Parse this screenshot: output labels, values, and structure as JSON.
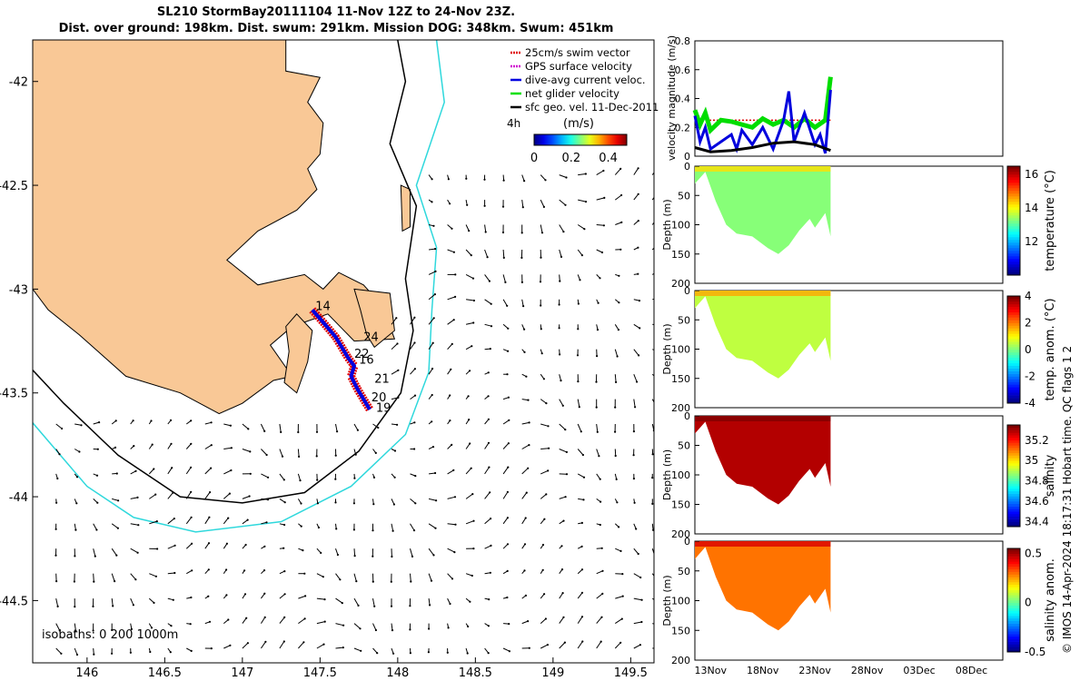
{
  "title": {
    "line1": "SL210 StormBay20111104 11-Nov 12Z to 24-Nov 23Z.",
    "line2": "Dist. over ground: 198km. Dist. swum: 291km. Mission DOG: 348km. Swum: 451km"
  },
  "credit": "© IMOS 14-Apr-2024 18:17:31 Hobart time. QC flags 1  2",
  "chart_data": [
    {
      "type": "map",
      "name": "glider track map",
      "x_ticks": [
        "146",
        "146.5",
        "147",
        "147.5",
        "148",
        "148.5",
        "149",
        "149.5"
      ],
      "y_ticks": [
        "-42",
        "-42.5",
        "-43",
        "-43.5",
        "-44",
        "-44.5"
      ],
      "xlim": [
        145.65,
        149.65
      ],
      "ylim": [
        -44.8,
        -41.8
      ],
      "legend": [
        "25cm/s swim vector",
        "GPS surface velocity",
        "dive-avg current veloc.",
        "net glider velocity",
        "sfc geo. vel. 11-Dec-2011"
      ],
      "legend_colors": [
        "#e00000",
        "#d000d0",
        "#0000e0",
        "#00e000",
        "#000000"
      ],
      "track_labels": [
        "14",
        "24",
        "22",
        "16",
        "21",
        "20",
        "19"
      ],
      "scale_label": "4h",
      "colorbar": {
        "label": "(m/s)",
        "ticks": [
          "0",
          "0.2",
          "0.4"
        ],
        "range": [
          0,
          0.5
        ]
      },
      "isobath_label": "isobaths: 0   200  1000m"
    },
    {
      "type": "line",
      "name": "velocity magnitude",
      "ylabel": "velocity magnitude (m/s)",
      "ylim": [
        0,
        0.8
      ],
      "y_ticks": [
        "0",
        "0.2",
        "0.4",
        "0.6",
        "0.8"
      ],
      "series": [
        {
          "name": "net glider velocity",
          "color": "#00dd00",
          "x": [
            11.5,
            12,
            12.5,
            13,
            14,
            15,
            16,
            17,
            18,
            19,
            20,
            21,
            22,
            23,
            24,
            24.5
          ],
          "values": [
            0.32,
            0.22,
            0.3,
            0.18,
            0.25,
            0.24,
            0.22,
            0.2,
            0.26,
            0.22,
            0.25,
            0.2,
            0.26,
            0.2,
            0.25,
            0.55
          ]
        },
        {
          "name": "dive-avg current veloc.",
          "color": "#0000dd",
          "x": [
            11.5,
            12,
            12.5,
            13,
            14,
            15,
            15.5,
            16,
            17,
            18,
            19,
            20,
            20.5,
            21,
            22,
            23,
            23.5,
            24,
            24.5
          ],
          "values": [
            0.28,
            0.1,
            0.2,
            0.05,
            0.1,
            0.15,
            0.05,
            0.18,
            0.08,
            0.2,
            0.05,
            0.25,
            0.45,
            0.1,
            0.3,
            0.08,
            0.15,
            0.02,
            0.46
          ]
        },
        {
          "name": "sfc geo. vel.",
          "color": "#000000",
          "x": [
            11.5,
            13,
            15,
            17,
            19,
            21,
            23,
            24.5
          ],
          "values": [
            0.06,
            0.03,
            0.04,
            0.06,
            0.09,
            0.1,
            0.08,
            0.04
          ]
        }
      ]
    },
    {
      "type": "section",
      "name": "temperature",
      "ylabel": "Depth (m)",
      "cbar_label": "temperature (°C)",
      "ylim": [
        200,
        0
      ],
      "clim": [
        10,
        16.5
      ],
      "cbar_ticks": [
        "16",
        "14",
        "12"
      ],
      "y_ticks": [
        "0",
        "50",
        "100",
        "150",
        "200"
      ],
      "bottom_depth_profile": [
        [
          11.5,
          30
        ],
        [
          12.5,
          10
        ],
        [
          13.5,
          60
        ],
        [
          14.5,
          100
        ],
        [
          15.5,
          115
        ],
        [
          17,
          120
        ],
        [
          18.5,
          140
        ],
        [
          19.5,
          150
        ],
        [
          20.5,
          135
        ],
        [
          21.5,
          110
        ],
        [
          22.5,
          90
        ],
        [
          23,
          105
        ],
        [
          24,
          80
        ],
        [
          24.5,
          120
        ]
      ],
      "dominant_value": 13.3
    },
    {
      "type": "section",
      "name": "temperature anomaly",
      "ylabel": "Depth (m)",
      "cbar_label": "temp. anom. (°C)",
      "ylim": [
        200,
        0
      ],
      "clim": [
        -4,
        4
      ],
      "cbar_ticks": [
        "4",
        "2",
        "0",
        "-2",
        "-4"
      ],
      "y_ticks": [
        "0",
        "50",
        "100",
        "150",
        "200"
      ],
      "dominant_value": 0.5
    },
    {
      "type": "section",
      "name": "salinity",
      "ylabel": "Depth (m)",
      "cbar_label": "salinity",
      "ylim": [
        200,
        0
      ],
      "clim": [
        34.35,
        35.35
      ],
      "cbar_ticks": [
        "35.2",
        "35",
        "34.8",
        "34.6",
        "34.4"
      ],
      "y_ticks": [
        "0",
        "50",
        "100",
        "150",
        "200"
      ],
      "dominant_value": 35.3
    },
    {
      "type": "section",
      "name": "salinity anomaly",
      "ylabel": "Depth (m)",
      "cbar_label": "salinity anom.",
      "ylim": [
        200,
        0
      ],
      "clim": [
        -0.5,
        0.55
      ],
      "cbar_ticks": [
        "0.5",
        "0",
        "-0.5"
      ],
      "y_ticks": [
        "0",
        "50",
        "100",
        "150",
        "200"
      ],
      "dominant_value": 0.3
    }
  ],
  "time_axis": {
    "labels": [
      "13Nov",
      "18Nov",
      "23Nov",
      "28Nov",
      "03Dec",
      "08Dec"
    ],
    "xlim": [
      11.5,
      41
    ]
  }
}
